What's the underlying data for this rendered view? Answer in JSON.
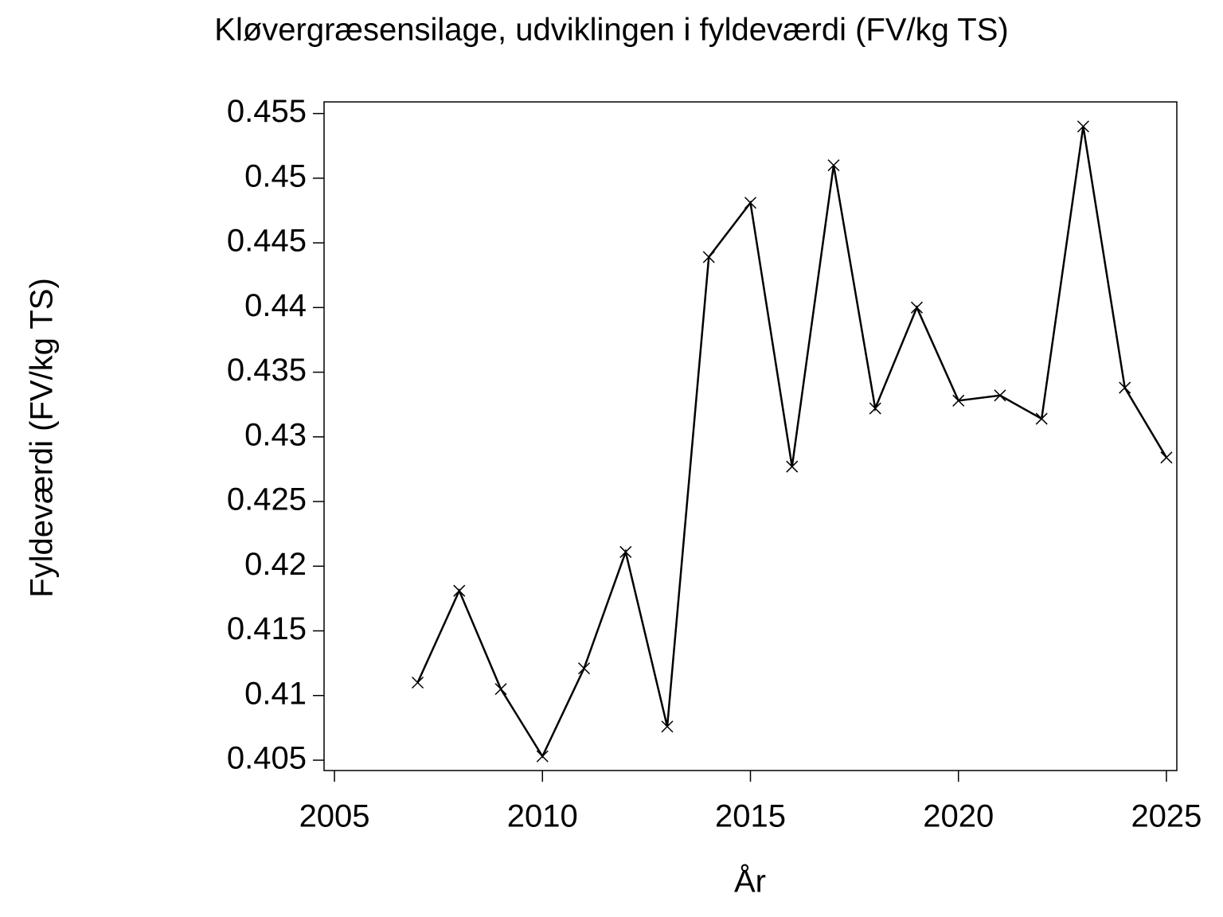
{
  "chart_data": {
    "type": "line",
    "title": "Kløvergræsensilage, udviklingen i fyldeværdi (FV/kg TS)",
    "x_label": "År",
    "y_label": "Fyldeværdi (FV/kg TS)",
    "x": [
      2007,
      2008,
      2009,
      2010,
      2011,
      2012,
      2013,
      2014,
      2015,
      2016,
      2017,
      2018,
      2019,
      2020,
      2021,
      2022,
      2023,
      2024,
      2025
    ],
    "series": [
      {
        "color": "#000000",
        "values": [
          0.411,
          0.4181,
          0.4105,
          0.4053,
          0.4121,
          0.4211,
          0.4076,
          0.4439,
          0.4481,
          0.4277,
          0.451,
          0.4322,
          0.44,
          0.4328,
          0.4332,
          0.4314,
          0.454,
          0.4338,
          0.4284
        ]
      }
    ],
    "xlim": [
      2004.75,
      2025.25
    ],
    "xticks": [
      2005,
      2010,
      2015,
      2020,
      2025
    ],
    "ylim": [
      0.4042,
      0.4559
    ],
    "yticks": [
      0.405,
      0.41,
      0.415,
      0.42,
      0.425,
      0.43,
      0.435,
      0.44,
      0.445,
      0.45,
      0.455
    ],
    "grid": false,
    "marker": "x"
  }
}
